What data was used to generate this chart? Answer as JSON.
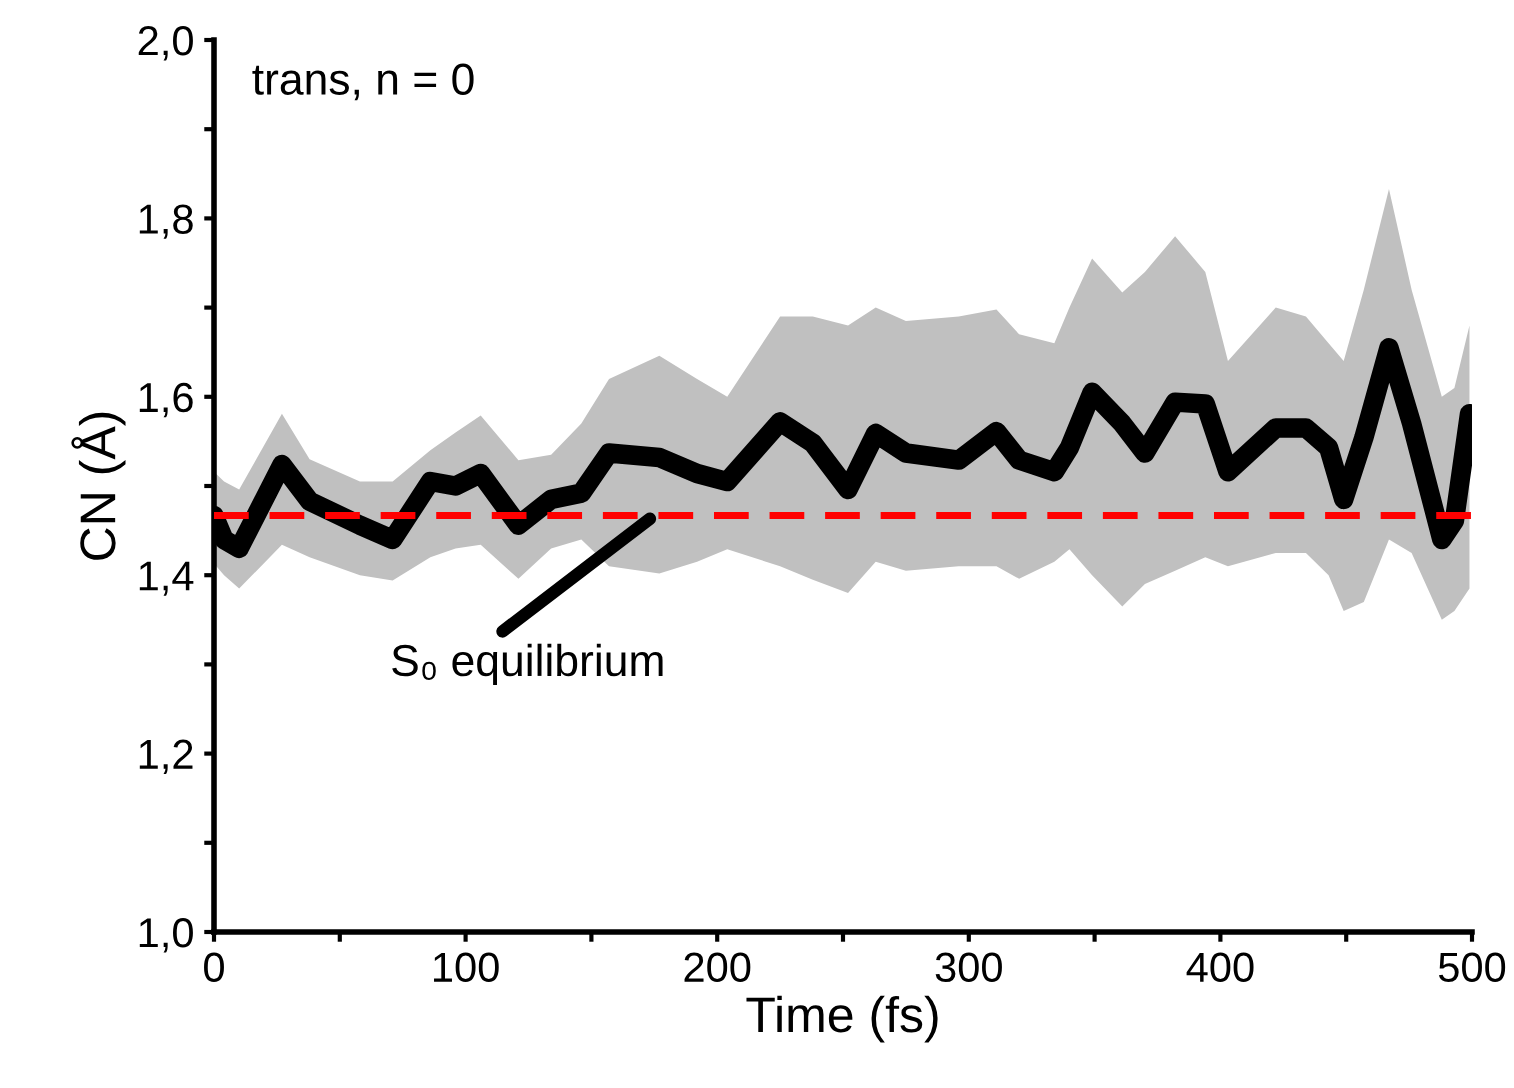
{
  "chart_data": {
    "type": "line",
    "xlabel": "Time (fs)",
    "ylabel": "CN (Å)",
    "xlim": [
      0,
      500
    ],
    "ylim": [
      1.0,
      2.0
    ],
    "xticks": [
      0,
      {
        "value": 50,
        "label": null
      },
      100,
      {
        "value": 150,
        "label": null
      },
      200,
      {
        "value": 250,
        "label": null
      },
      300,
      {
        "value": 350,
        "label": null
      },
      400,
      {
        "value": 450,
        "label": null
      },
      500
    ],
    "yticks": [
      {
        "value": 1.0,
        "label": "1,0"
      },
      {
        "value": 1.1,
        "label": null
      },
      {
        "value": 1.2,
        "label": "1,2"
      },
      {
        "value": 1.3,
        "label": null
      },
      {
        "value": 1.4,
        "label": "1,4"
      },
      {
        "value": 1.5,
        "label": null
      },
      {
        "value": 1.6,
        "label": "1,6"
      },
      {
        "value": 1.7,
        "label": null
      },
      {
        "value": 1.8,
        "label": "1,8"
      },
      {
        "value": 1.9,
        "label": null
      },
      {
        "value": 2.0,
        "label": "2,0"
      }
    ],
    "grid": false,
    "legend": false,
    "marker": "none",
    "line_style": "solid",
    "series": [
      {
        "color": "#000000",
        "x": [
          0,
          4,
          10,
          27,
          38,
          58,
          71,
          86,
          96,
          106,
          121,
          134,
          146,
          157,
          177,
          192,
          204,
          225,
          238,
          252,
          263,
          275,
          296,
          311,
          320,
          334,
          340,
          349,
          361,
          370,
          382,
          394,
          403,
          422,
          434,
          443,
          449,
          457,
          467,
          476,
          488,
          493,
          499
        ],
        "values": [
          1.467,
          1.44,
          1.43,
          1.524,
          1.483,
          1.456,
          1.44,
          1.505,
          1.5,
          1.514,
          1.456,
          1.485,
          1.492,
          1.537,
          1.532,
          1.514,
          1.505,
          1.572,
          1.548,
          1.496,
          1.559,
          1.537,
          1.529,
          1.561,
          1.529,
          1.516,
          1.543,
          1.605,
          1.57,
          1.537,
          1.594,
          1.592,
          1.516,
          1.565,
          1.565,
          1.543,
          1.485,
          1.554,
          1.655,
          1.57,
          1.44,
          1.461,
          1.581
        ],
        "upper": [
          1.516,
          1.505,
          1.496,
          1.581,
          1.53,
          1.505,
          1.505,
          1.54,
          1.56,
          1.579,
          1.529,
          1.535,
          1.57,
          1.62,
          1.646,
          1.62,
          1.6,
          1.69,
          1.69,
          1.68,
          1.7,
          1.685,
          1.69,
          1.698,
          1.67,
          1.66,
          1.7,
          1.755,
          1.717,
          1.74,
          1.78,
          1.74,
          1.64,
          1.7,
          1.69,
          1.66,
          1.64,
          1.72,
          1.833,
          1.72,
          1.6,
          1.61,
          1.68
        ],
        "lower": [
          1.413,
          1.4,
          1.385,
          1.434,
          1.42,
          1.4,
          1.394,
          1.42,
          1.43,
          1.434,
          1.396,
          1.43,
          1.44,
          1.41,
          1.402,
          1.415,
          1.429,
          1.41,
          1.395,
          1.38,
          1.415,
          1.405,
          1.41,
          1.41,
          1.396,
          1.415,
          1.429,
          1.4,
          1.365,
          1.39,
          1.405,
          1.42,
          1.41,
          1.425,
          1.425,
          1.4,
          1.36,
          1.37,
          1.44,
          1.425,
          1.35,
          1.36,
          1.385
        ]
      }
    ],
    "ref_lines": [
      {
        "axis": "y",
        "value": 1.467,
        "color": "#ff0000",
        "line_style": "dashed"
      }
    ],
    "annotations": [
      "trans, n = 0",
      {
        "text": "S₀ equilibrium",
        "x": 175,
        "y": 1.467
      }
    ]
  }
}
